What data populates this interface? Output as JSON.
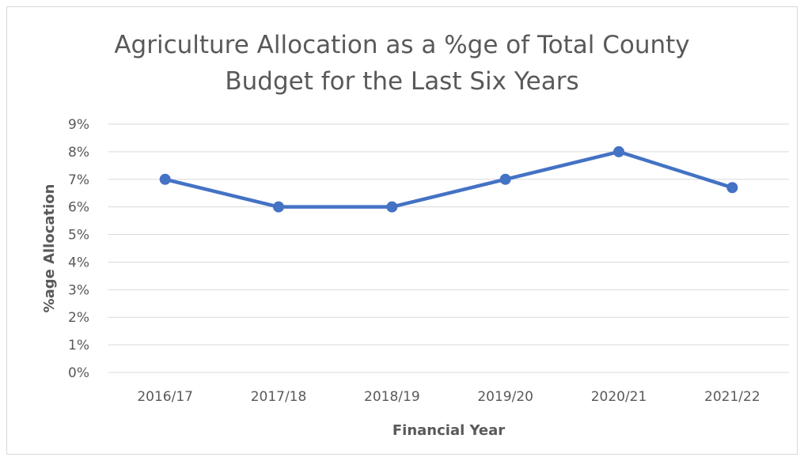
{
  "chart_data": {
    "type": "line",
    "title_lines": [
      "Agriculture Allocation as a %ge of Total County",
      "Budget for the Last Six Years"
    ],
    "xlabel": "Financial Year",
    "ylabel": "%age Allocation",
    "categories": [
      "2016/17",
      "2017/18",
      "2018/19",
      "2019/20",
      "2020/21",
      "2021/22"
    ],
    "series": [
      {
        "values": [
          7,
          6,
          6,
          7,
          8,
          6.7
        ]
      }
    ],
    "ylim": [
      0,
      9
    ],
    "yticks": [
      "0%",
      "1%",
      "2%",
      "3%",
      "4%",
      "5%",
      "6%",
      "7%",
      "8%",
      "9%"
    ],
    "grid": true,
    "legend": "none",
    "colors": {
      "line": "#4472c4",
      "grid": "#d9d9d9",
      "text": "#595959"
    }
  }
}
